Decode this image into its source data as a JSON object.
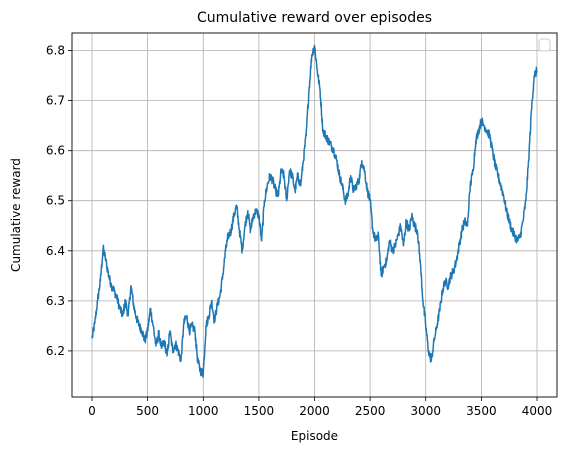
{
  "chart_data": {
    "type": "line",
    "title": "Cumulative reward over episodes",
    "xlabel": "Episode",
    "ylabel": "Cumulative reward",
    "xlim": [
      -180,
      4180
    ],
    "ylim": [
      6.108,
      6.835
    ],
    "xticks": [
      0,
      500,
      1000,
      1500,
      2000,
      2500,
      3000,
      3500,
      4000
    ],
    "yticks": [
      6.2,
      6.3,
      6.4,
      6.5,
      6.6,
      6.7,
      6.8
    ],
    "grid": true,
    "legend": "top-right",
    "line_color": "#1f77b4",
    "series": [
      {
        "x": [
          0,
          25,
          50,
          75,
          100,
          125,
          150,
          175,
          200,
          225,
          250,
          275,
          300,
          325,
          350,
          375,
          400,
          425,
          450,
          475,
          500,
          525,
          550,
          575,
          600,
          625,
          650,
          675,
          700,
          725,
          750,
          775,
          800,
          825,
          850,
          875,
          900,
          925,
          950,
          975,
          1000,
          1025,
          1050,
          1075,
          1100,
          1125,
          1150,
          1175,
          1200,
          1225,
          1250,
          1275,
          1300,
          1325,
          1350,
          1375,
          1400,
          1425,
          1450,
          1475,
          1500,
          1525,
          1550,
          1575,
          1600,
          1625,
          1650,
          1675,
          1700,
          1725,
          1750,
          1775,
          1800,
          1825,
          1850,
          1875,
          1900,
          1925,
          1950,
          1975,
          2000,
          2025,
          2050,
          2075,
          2100,
          2125,
          2150,
          2175,
          2200,
          2225,
          2250,
          2275,
          2300,
          2325,
          2350,
          2375,
          2400,
          2425,
          2450,
          2475,
          2500,
          2525,
          2550,
          2575,
          2600,
          2625,
          2650,
          2675,
          2700,
          2725,
          2750,
          2775,
          2800,
          2825,
          2850,
          2875,
          2900,
          2925,
          2950,
          2975,
          3000,
          3025,
          3050,
          3075,
          3100,
          3125,
          3150,
          3175,
          3200,
          3225,
          3250,
          3275,
          3300,
          3325,
          3350,
          3375,
          3400,
          3425,
          3450,
          3475,
          3500,
          3525,
          3550,
          3575,
          3600,
          3625,
          3650,
          3675,
          3700,
          3725,
          3750,
          3775,
          3800,
          3825,
          3850,
          3875,
          3900,
          3925,
          3950,
          3975,
          4000
        ],
        "y": [
          6.225,
          6.255,
          6.3,
          6.34,
          6.405,
          6.38,
          6.35,
          6.33,
          6.32,
          6.305,
          6.285,
          6.27,
          6.3,
          6.27,
          6.33,
          6.29,
          6.265,
          6.25,
          6.24,
          6.22,
          6.24,
          6.285,
          6.25,
          6.21,
          6.235,
          6.205,
          6.22,
          6.19,
          6.24,
          6.2,
          6.215,
          6.2,
          6.18,
          6.255,
          6.27,
          6.24,
          6.25,
          6.24,
          6.18,
          6.16,
          6.155,
          6.25,
          6.27,
          6.3,
          6.26,
          6.29,
          6.31,
          6.35,
          6.4,
          6.43,
          6.44,
          6.47,
          6.49,
          6.44,
          6.4,
          6.45,
          6.48,
          6.44,
          6.47,
          6.48,
          6.47,
          6.42,
          6.5,
          6.53,
          6.55,
          6.54,
          6.52,
          6.51,
          6.56,
          6.55,
          6.5,
          6.56,
          6.55,
          6.52,
          6.55,
          6.53,
          6.58,
          6.63,
          6.72,
          6.79,
          6.81,
          6.76,
          6.72,
          6.64,
          6.63,
          6.62,
          6.61,
          6.6,
          6.58,
          6.55,
          6.53,
          6.5,
          6.51,
          6.55,
          6.52,
          6.53,
          6.54,
          6.58,
          6.56,
          6.52,
          6.5,
          6.44,
          6.42,
          6.43,
          6.35,
          6.37,
          6.38,
          6.42,
          6.4,
          6.41,
          6.43,
          6.45,
          6.41,
          6.46,
          6.44,
          6.47,
          6.45,
          6.44,
          6.38,
          6.3,
          6.25,
          6.2,
          6.18,
          6.22,
          6.25,
          6.28,
          6.32,
          6.34,
          6.33,
          6.35,
          6.36,
          6.38,
          6.41,
          6.44,
          6.46,
          6.45,
          6.53,
          6.56,
          6.62,
          6.64,
          6.66,
          6.65,
          6.64,
          6.63,
          6.6,
          6.57,
          6.55,
          6.53,
          6.51,
          6.48,
          6.46,
          6.44,
          6.43,
          6.42,
          6.43,
          6.46,
          6.5,
          6.58,
          6.68,
          6.75,
          6.76
        ]
      }
    ]
  }
}
